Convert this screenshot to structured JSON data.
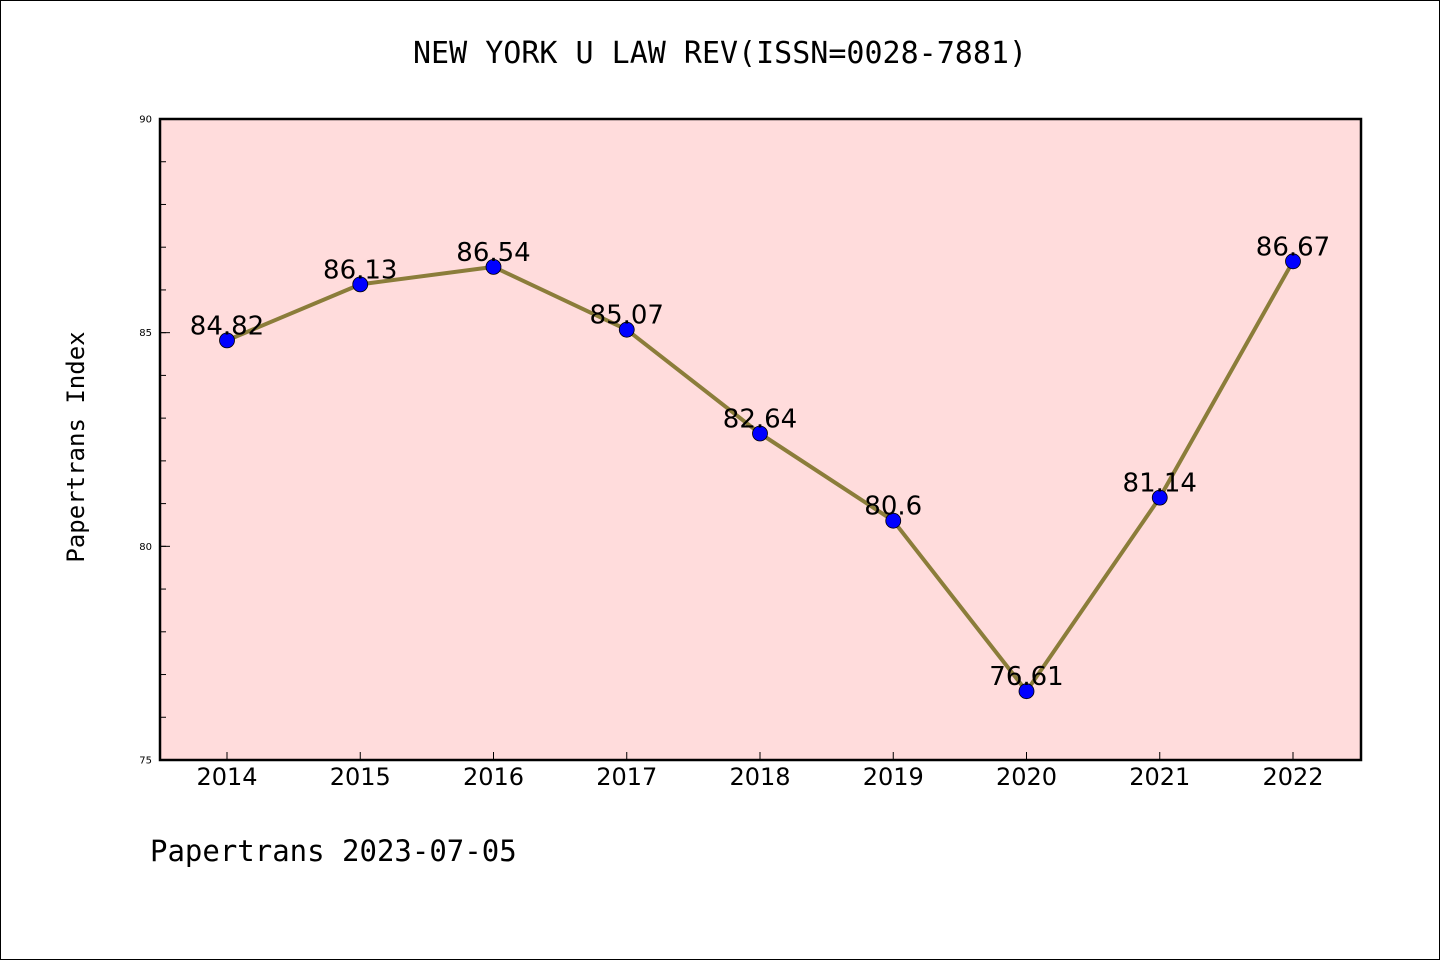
{
  "chart_data": {
    "type": "line",
    "title": "NEW YORK U LAW REV(ISSN=0028-7881)",
    "ylabel": "Papertrans Index",
    "xlabel": "",
    "x": [
      "2014",
      "2015",
      "2016",
      "2017",
      "2018",
      "2019",
      "2020",
      "2021",
      "2022"
    ],
    "series": [
      {
        "values": [
          84.82,
          86.13,
          86.54,
          85.07,
          82.64,
          80.6,
          76.61,
          81.14,
          86.67
        ],
        "labels": [
          "84.82",
          "86.13",
          "86.54",
          "85.07",
          "82.64",
          "80.6",
          "76.61",
          "81.14",
          "86.67"
        ],
        "line_color": "#8b7d3a",
        "marker_color": "#0000ff"
      }
    ],
    "ylim": [
      75,
      90
    ],
    "yticks": [
      75,
      80,
      85,
      90
    ],
    "grid": false,
    "plot_background": "#ffdcdc"
  },
  "footer": {
    "text": "Papertrans 2023-07-05"
  }
}
